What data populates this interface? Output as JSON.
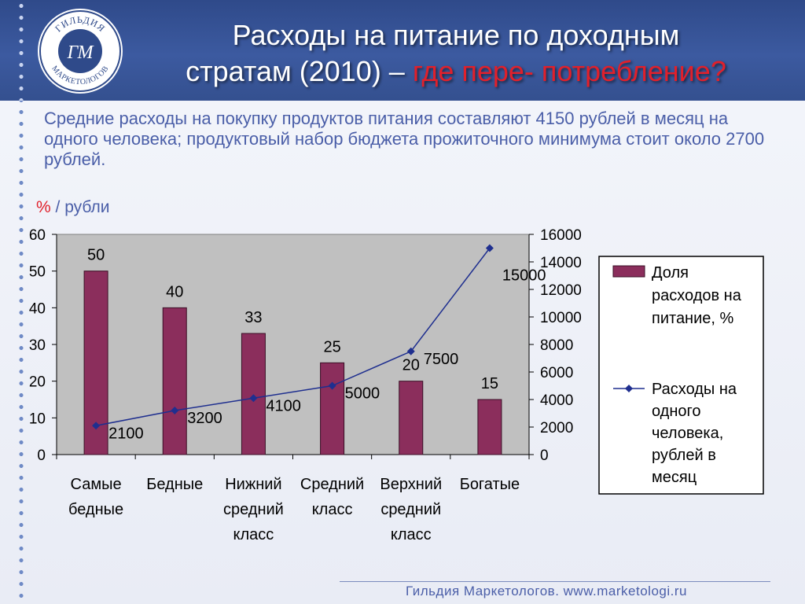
{
  "header": {
    "title_line1": "Расходы на питание по доходным",
    "title_line2_main": "стратам (2010) – ",
    "title_line2_accent": "где пере- потребление?",
    "logo": {
      "text_top": "ГИЛЬДИЯ",
      "text_bottom": "МАРКЕТОЛОГОВ",
      "monogram": "ГМ"
    }
  },
  "intro_text": "Средние расходы на покупку продуктов питания составляют 4150 рублей в месяц на одного человека; продуктовый набор бюджета прожиточного минимума стоит около 2700 рублей.",
  "axis_note": {
    "pct": "%",
    "rest": " / рубли"
  },
  "chart_data": {
    "type": "bar+line",
    "categories": [
      [
        "Самые",
        "бедные"
      ],
      [
        "Бедные"
      ],
      [
        "Нижний",
        "средний",
        "класс"
      ],
      [
        "Средний",
        "класс"
      ],
      [
        "Верхний",
        "средний",
        "класс"
      ],
      [
        "Богатые"
      ]
    ],
    "series": [
      {
        "name": "Доля расходов на питание, %",
        "type": "bar",
        "axis": "left",
        "values": [
          50,
          40,
          33,
          25,
          20,
          15
        ],
        "color": "#8b2e5c"
      },
      {
        "name": "Расходы на одного человека, рублей в месяц",
        "type": "line",
        "axis": "right",
        "values": [
          2100,
          3200,
          4100,
          5000,
          7500,
          15000
        ],
        "color": "#1f2f8f"
      }
    ],
    "y_left": {
      "min": 0,
      "max": 60,
      "ticks": [
        0,
        10,
        20,
        30,
        40,
        50,
        60
      ]
    },
    "y_right": {
      "min": 0,
      "max": 16000,
      "ticks": [
        0,
        2000,
        4000,
        6000,
        8000,
        10000,
        12000,
        14000,
        16000
      ]
    },
    "legend": {
      "position": "right",
      "bar_lines": [
        "Доля",
        "расходов на",
        "питание, %"
      ],
      "line_lines": [
        "Расходы на",
        "одного",
        "человека,",
        "рублей в",
        "месяц"
      ]
    },
    "plot_background": "#c0c0c0"
  },
  "footer": "Гильдия Маркетологов. www.marketologi.ru"
}
